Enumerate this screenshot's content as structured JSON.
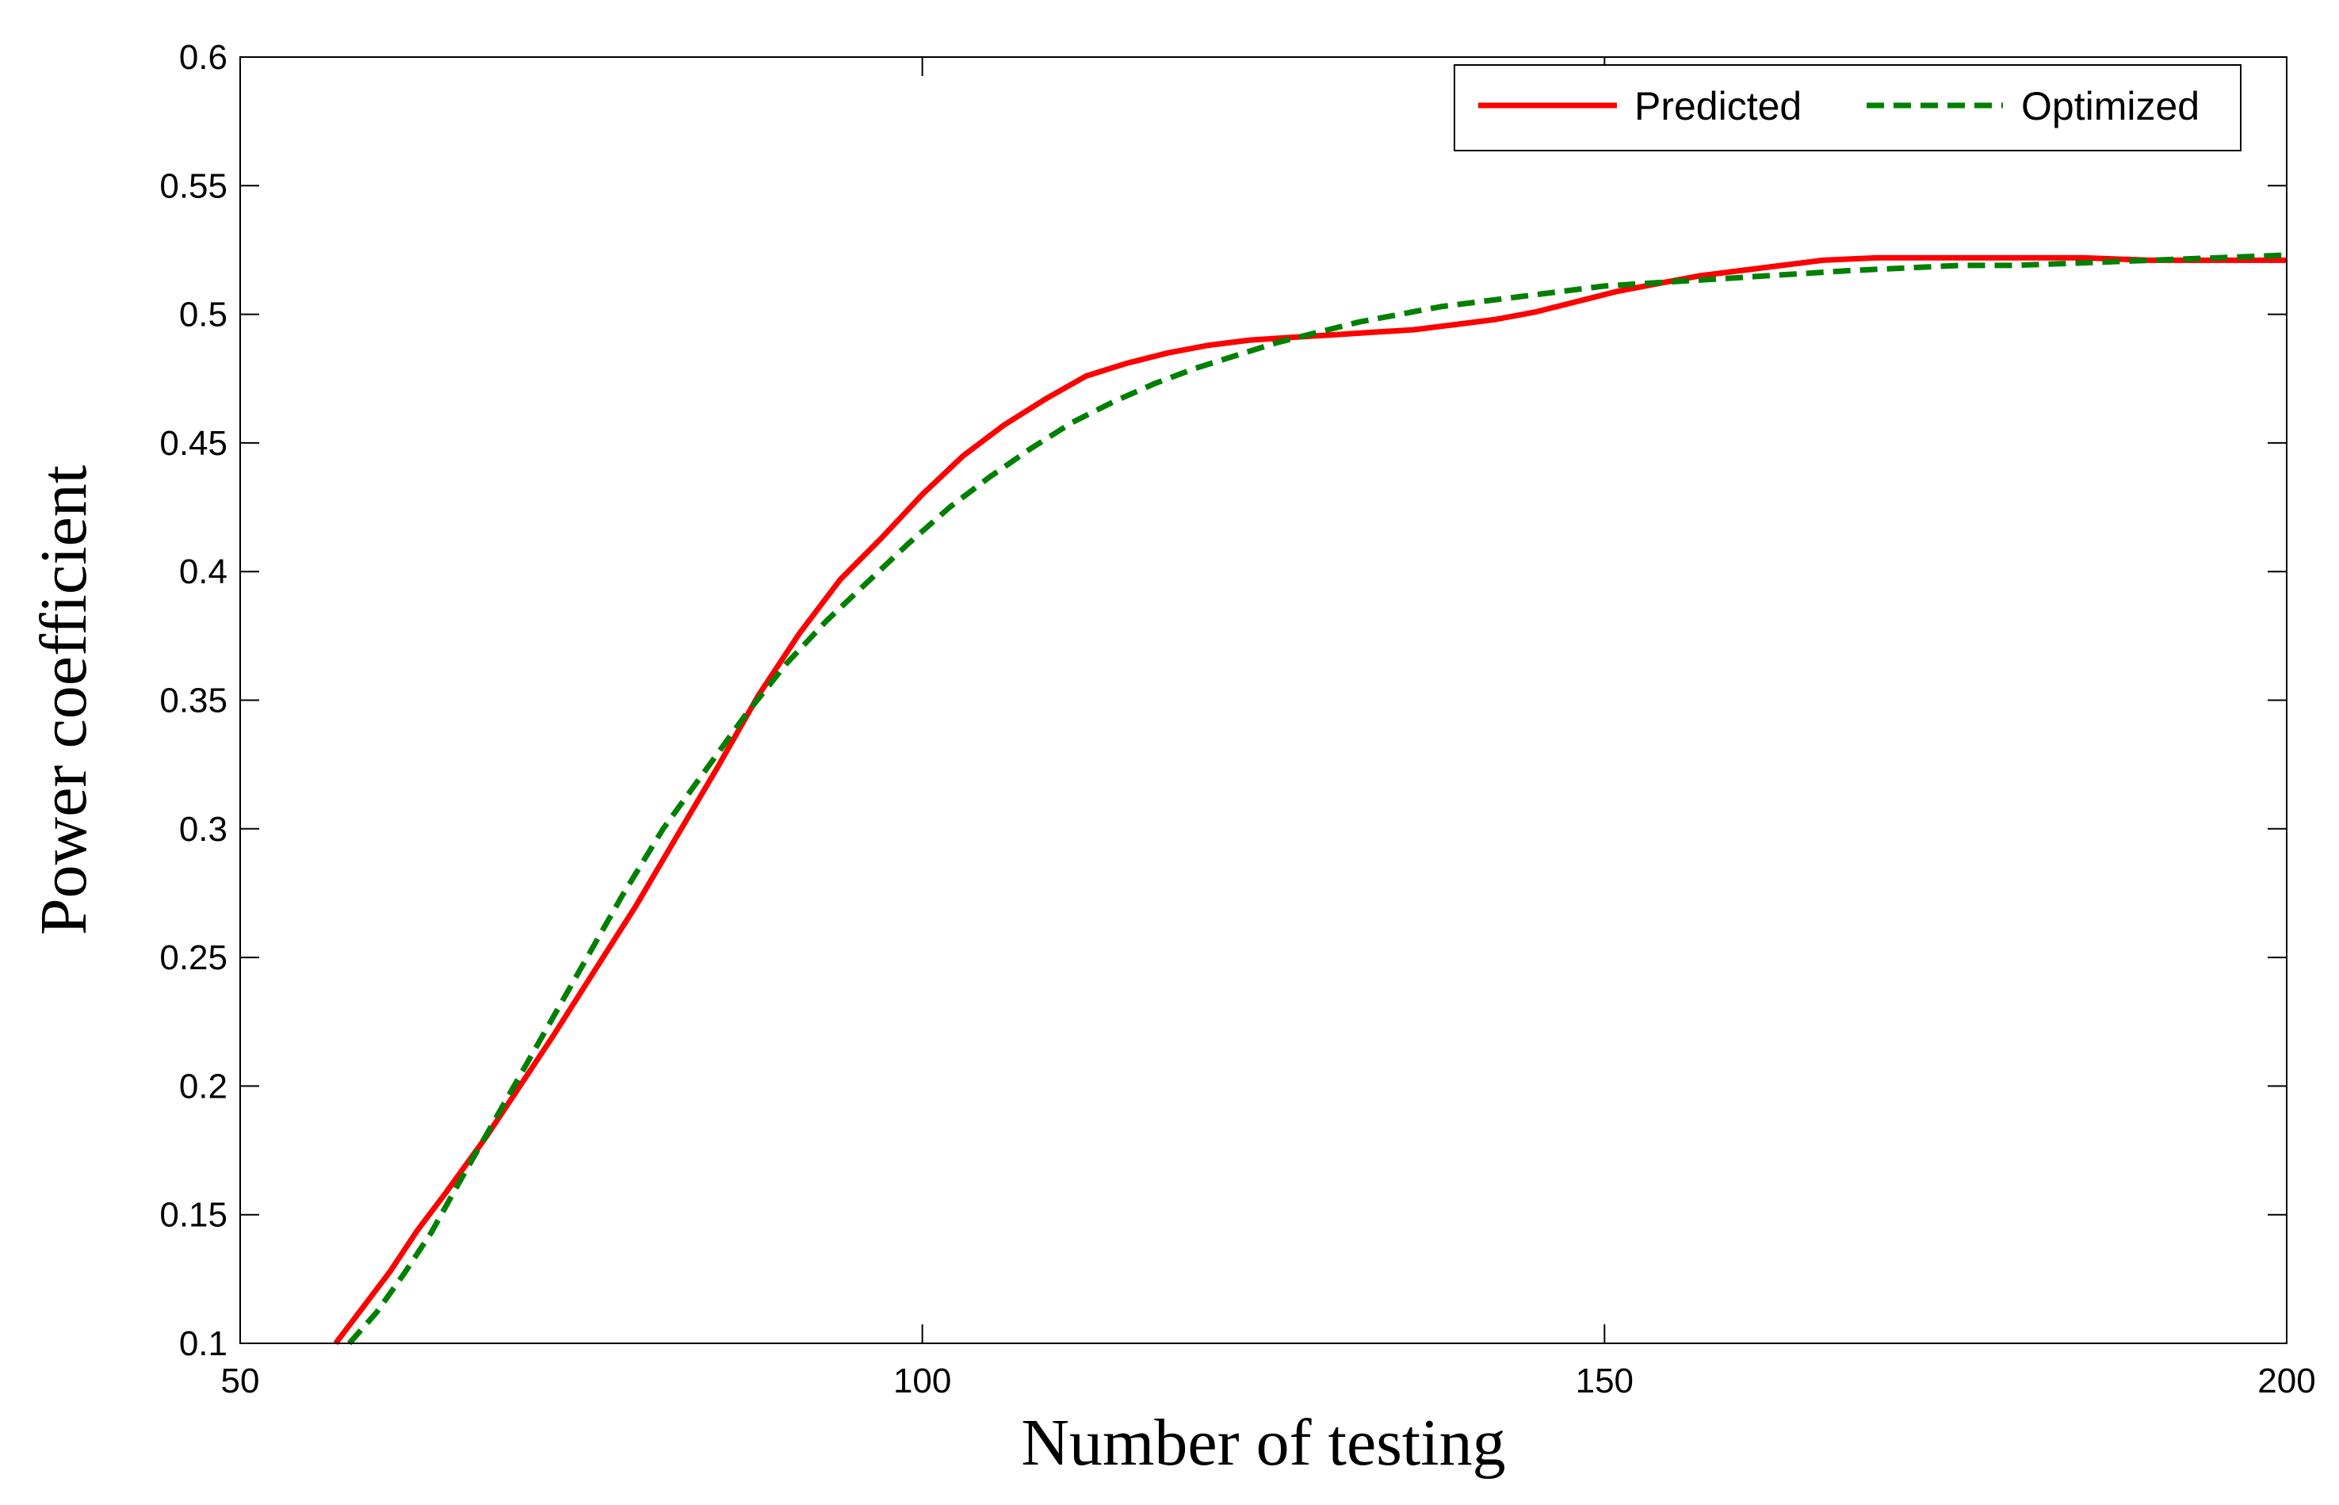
{
  "chart_data": {
    "type": "line",
    "xlabel": "Number of testing",
    "ylabel": "Power coefficient",
    "xlim": [
      50,
      200
    ],
    "ylim": [
      0.1,
      0.6
    ],
    "xticks": [
      50,
      100,
      150,
      200
    ],
    "yticks": [
      0.1,
      0.15,
      0.2,
      0.25,
      0.3,
      0.35,
      0.4,
      0.45,
      0.5,
      0.55,
      0.6
    ],
    "xtick_labels": [
      "50",
      "100",
      "150",
      "200"
    ],
    "ytick_labels": [
      "0.1",
      "0.15",
      "0.2",
      "0.25",
      "0.3",
      "0.35",
      "0.4",
      "0.45",
      "0.5",
      "0.55",
      "0.6"
    ],
    "grid": false,
    "legend": {
      "position": "top-right"
    },
    "series": [
      {
        "name": "Predicted",
        "color": "#ff0000",
        "style": "solid",
        "x": [
          57,
          59,
          61,
          63,
          65,
          68,
          70,
          73,
          76,
          79,
          82,
          85,
          88,
          91,
          94,
          97,
          100,
          103,
          106,
          109,
          112,
          115,
          118,
          121,
          124,
          127,
          130,
          133,
          136,
          139,
          142,
          145,
          148,
          151,
          154,
          157,
          160,
          163,
          166,
          170,
          175,
          180,
          185,
          190,
          195,
          200
        ],
        "y": [
          0.1,
          0.114,
          0.128,
          0.144,
          0.158,
          0.18,
          0.196,
          0.22,
          0.245,
          0.27,
          0.297,
          0.324,
          0.352,
          0.376,
          0.397,
          0.413,
          0.43,
          0.445,
          0.457,
          0.467,
          0.476,
          0.481,
          0.485,
          0.488,
          0.49,
          0.491,
          0.492,
          0.493,
          0.494,
          0.496,
          0.498,
          0.501,
          0.505,
          0.509,
          0.512,
          0.515,
          0.517,
          0.519,
          0.521,
          0.522,
          0.522,
          0.522,
          0.522,
          0.521,
          0.521,
          0.521
        ]
      },
      {
        "name": "Optimized",
        "color": "#008000",
        "style": "dashed",
        "x": [
          58,
          60,
          62,
          64,
          66,
          69,
          72,
          75,
          78,
          81,
          84,
          87,
          90,
          93,
          96,
          99,
          102,
          105,
          108,
          111,
          114,
          117,
          120,
          123,
          126,
          129,
          132,
          135,
          138,
          141,
          144,
          147,
          150,
          153,
          156,
          159,
          162,
          165,
          168,
          172,
          176,
          180,
          185,
          190,
          195,
          200
        ],
        "y": [
          0.1,
          0.112,
          0.127,
          0.143,
          0.162,
          0.19,
          0.218,
          0.246,
          0.274,
          0.3,
          0.322,
          0.344,
          0.364,
          0.381,
          0.396,
          0.411,
          0.425,
          0.437,
          0.448,
          0.458,
          0.466,
          0.473,
          0.479,
          0.484,
          0.489,
          0.493,
          0.497,
          0.5,
          0.503,
          0.505,
          0.507,
          0.509,
          0.511,
          0.512,
          0.513,
          0.514,
          0.515,
          0.516,
          0.517,
          0.518,
          0.519,
          0.519,
          0.52,
          0.521,
          0.522,
          0.523
        ]
      }
    ]
  }
}
